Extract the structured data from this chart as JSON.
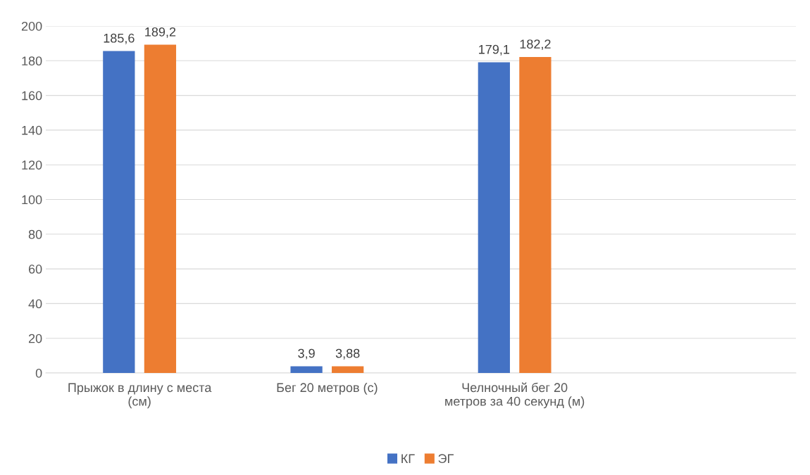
{
  "chart_data": {
    "type": "bar",
    "categories": [
      "Прыжок в длину с места\n(см)",
      "Бег 20 метров (с)",
      "Челночный бег 20\nметров за 40 секунд (м)",
      null
    ],
    "series": [
      {
        "name": "КГ",
        "color": "#4472c4",
        "values": [
          185.6,
          3.9,
          179.1,
          null
        ],
        "value_labels": [
          "185,6",
          "3,9",
          "179,1",
          null
        ]
      },
      {
        "name": "ЭГ",
        "color": "#ed7d31",
        "values": [
          189.2,
          3.88,
          182.2,
          null
        ],
        "value_labels": [
          "189,2",
          "3,88",
          "182,2",
          null
        ]
      }
    ],
    "ylim": [
      0,
      200
    ],
    "yticks": [
      0,
      20,
      40,
      60,
      80,
      100,
      120,
      140,
      160,
      180,
      200
    ],
    "grid": "y",
    "legend": "bottom"
  }
}
